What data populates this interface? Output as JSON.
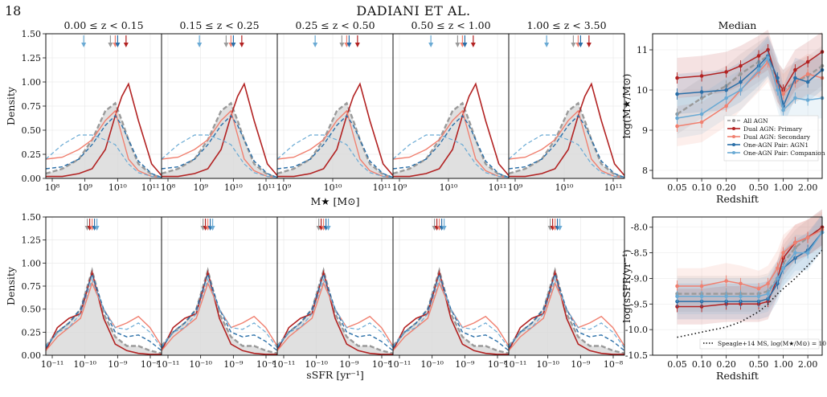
{
  "page": {
    "number": "18",
    "running_head": "DADIANI ET AL."
  },
  "colors": {
    "all": "#9a9a9a",
    "primary": "#b22222",
    "secondary": "#f08070",
    "agn1": "#2a6fa8",
    "companion": "#6aaad4",
    "fill": "#d8d8d8"
  },
  "panel_titles": [
    "0.00 ≤ z < 0.15",
    "0.15 ≤ z < 0.25",
    "0.25 ≤ z < 0.50",
    "0.50 ≤ z < 1.00",
    "1.00 ≤ z < 3.50"
  ],
  "median_title": "Median",
  "y_ticks_density": [
    "0.00",
    "0.25",
    "0.50",
    "0.75",
    "1.00",
    "1.25",
    "1.50"
  ],
  "density_label": "Density",
  "mass_xlabel": "M★ [M⊙]",
  "ssfr_xlabel": "sSFR [yr⁻¹]",
  "mass_xticks": [
    [
      "10⁸",
      "10⁹",
      "10¹⁰",
      "10¹¹"
    ],
    [
      "10⁸",
      "10⁹",
      "10¹⁰",
      "10¹¹"
    ],
    [
      "10⁹",
      "10¹⁰",
      "10¹¹"
    ],
    [
      "10⁹",
      "10¹⁰",
      "10¹¹"
    ],
    [
      "10⁹",
      "10¹⁰",
      "10¹¹"
    ]
  ],
  "ssfr_xticks": [
    [
      "10⁻¹¹",
      "10⁻¹⁰",
      "10⁻⁹",
      "10⁻⁸"
    ],
    [
      "10⁻¹¹",
      "10⁻¹⁰",
      "10⁻⁹",
      "10⁻⁸"
    ],
    [
      "10⁻¹¹",
      "10⁻¹⁰",
      "10⁻⁹",
      "10⁻⁸"
    ],
    [
      "10⁻¹¹",
      "10⁻¹⁰",
      "10⁻⁹",
      "10⁻⁸"
    ],
    [
      "10⁻¹¹",
      "10⁻¹⁰",
      "10⁻⁹",
      "10⁻⁸"
    ]
  ],
  "median_mass": {
    "ylabel": "log(M★/M⊙)",
    "yticks": [
      "8",
      "9",
      "10",
      "11"
    ],
    "xlabel": "Redshift",
    "xticks": [
      "0.05",
      "0.10",
      "0.20",
      "0.50",
      "1.00",
      "2.00"
    ],
    "legend": [
      "All AGN",
      "Dual AGN: Primary",
      "Dual AGN: Secondary",
      "One-AGN Pair: AGN1",
      "One-AGN Pair: Companion"
    ]
  },
  "median_ssfr": {
    "ylabel": "log(sSFR/yr⁻¹)",
    "yticks": [
      "-10.5",
      "-10.0",
      "-9.5",
      "-9.0",
      "-8.5",
      "-8.0"
    ],
    "xlabel": "Redshift",
    "xticks": [
      "0.05",
      "0.10",
      "0.20",
      "0.50",
      "1.00",
      "2.00"
    ],
    "legend": [
      "Speagle+14 MS, log(M★/M⊙) = 10"
    ]
  },
  "chart_data": [
    {
      "type": "line",
      "panel": "mass",
      "row": 0,
      "bin": 0,
      "x": [
        8.0,
        8.5,
        9.0,
        9.4,
        9.8,
        10.1,
        10.3,
        10.5,
        10.8,
        11.2,
        11.5
      ],
      "series": [
        {
          "name": "All AGN",
          "values": [
            0.05,
            0.1,
            0.2,
            0.4,
            0.7,
            0.78,
            0.6,
            0.4,
            0.15,
            0.04,
            0.01
          ]
        },
        {
          "name": "Dual AGN: Primary",
          "values": [
            0.02,
            0.02,
            0.05,
            0.1,
            0.3,
            0.65,
            0.85,
            0.98,
            0.6,
            0.15,
            0.03
          ]
        },
        {
          "name": "Dual AGN: Secondary",
          "values": [
            0.2,
            0.22,
            0.3,
            0.4,
            0.6,
            0.7,
            0.45,
            0.2,
            0.08,
            0.02,
            0.01
          ]
        },
        {
          "name": "One-AGN Pair: AGN1",
          "values": [
            0.1,
            0.12,
            0.2,
            0.35,
            0.55,
            0.65,
            0.55,
            0.4,
            0.18,
            0.05,
            0.01
          ]
        },
        {
          "name": "One-AGN Pair: Companion",
          "values": [
            0.2,
            0.35,
            0.45,
            0.45,
            0.4,
            0.35,
            0.25,
            0.15,
            0.06,
            0.02,
            0.01
          ]
        }
      ]
    },
    {
      "type": "line",
      "panel": "ssfr",
      "row": 1,
      "bin": 0,
      "x": [
        -11.0,
        -10.7,
        -10.4,
        -10.1,
        -9.8,
        -9.5,
        -9.2,
        -8.9,
        -8.6,
        -8.3,
        -8.0
      ],
      "series": [
        {
          "name": "All AGN",
          "values": [
            0.1,
            0.25,
            0.35,
            0.5,
            0.92,
            0.45,
            0.2,
            0.1,
            0.1,
            0.05,
            0.02
          ]
        },
        {
          "name": "Dual AGN: Primary",
          "values": [
            0.05,
            0.3,
            0.4,
            0.45,
            0.9,
            0.4,
            0.12,
            0.05,
            0.02,
            0.01,
            0.01
          ]
        },
        {
          "name": "Dual AGN: Secondary",
          "values": [
            0.05,
            0.2,
            0.3,
            0.4,
            0.78,
            0.5,
            0.3,
            0.35,
            0.42,
            0.3,
            0.1
          ]
        },
        {
          "name": "One-AGN Pair: AGN1",
          "values": [
            0.08,
            0.25,
            0.35,
            0.5,
            0.88,
            0.5,
            0.25,
            0.2,
            0.22,
            0.15,
            0.05
          ]
        },
        {
          "name": "One-AGN Pair: Companion",
          "values": [
            0.1,
            0.25,
            0.3,
            0.45,
            0.82,
            0.5,
            0.3,
            0.28,
            0.35,
            0.25,
            0.08
          ]
        }
      ]
    },
    {
      "type": "line",
      "panel": "median-mass",
      "xlabel": "Redshift",
      "ylabel": "log(M★/M⊙)",
      "x": [
        0.05,
        0.1,
        0.2,
        0.3,
        0.5,
        0.65,
        0.85,
        1.0,
        1.4,
        2.0,
        3.0
      ],
      "ylim": [
        7.8,
        11.4
      ],
      "series": [
        {
          "name": "All AGN",
          "values": [
            9.4,
            9.8,
            10.1,
            10.4,
            10.7,
            10.85,
            10.2,
            10.0,
            10.2,
            10.35,
            10.6
          ]
        },
        {
          "name": "Dual AGN: Primary",
          "values": [
            10.3,
            10.35,
            10.45,
            10.6,
            10.85,
            11.0,
            10.2,
            10.0,
            10.5,
            10.7,
            10.95
          ]
        },
        {
          "name": "Dual AGN: Secondary",
          "values": [
            9.1,
            9.2,
            9.6,
            10.0,
            10.45,
            10.7,
            10.1,
            9.9,
            10.2,
            10.4,
            10.3
          ]
        },
        {
          "name": "One-AGN Pair: AGN1",
          "values": [
            9.9,
            9.95,
            10.0,
            10.2,
            10.6,
            10.85,
            10.3,
            9.6,
            10.3,
            10.2,
            10.5
          ]
        },
        {
          "name": "One-AGN Pair: Companion",
          "values": [
            9.3,
            9.4,
            9.8,
            10.0,
            10.5,
            10.8,
            10.0,
            9.5,
            9.8,
            9.75,
            9.8
          ]
        }
      ]
    },
    {
      "type": "line",
      "panel": "median-ssfr",
      "xlabel": "Redshift",
      "ylabel": "log(sSFR/yr⁻¹)",
      "x": [
        0.05,
        0.1,
        0.2,
        0.3,
        0.5,
        0.65,
        0.85,
        1.0,
        1.4,
        2.0,
        3.0
      ],
      "ylim": [
        -10.5,
        -7.8
      ],
      "series": [
        {
          "name": "All AGN",
          "values": [
            -9.3,
            -9.3,
            -9.3,
            -9.3,
            -9.3,
            -9.25,
            -9.0,
            -8.7,
            -8.4,
            -8.2,
            -8.0
          ]
        },
        {
          "name": "Dual AGN: Primary",
          "values": [
            -9.55,
            -9.55,
            -9.5,
            -9.5,
            -9.5,
            -9.45,
            -9.0,
            -8.6,
            -8.3,
            -8.2,
            -8.0
          ]
        },
        {
          "name": "Dual AGN: Secondary",
          "values": [
            -9.15,
            -9.15,
            -9.05,
            -9.1,
            -9.2,
            -9.1,
            -8.8,
            -8.5,
            -8.3,
            -8.2,
            -8.05
          ]
        },
        {
          "name": "One-AGN Pair: AGN1",
          "values": [
            -9.45,
            -9.45,
            -9.45,
            -9.45,
            -9.45,
            -9.4,
            -9.1,
            -8.8,
            -8.6,
            -8.45,
            -8.1
          ]
        },
        {
          "name": "One-AGN Pair: Companion",
          "values": [
            -9.35,
            -9.35,
            -9.35,
            -9.35,
            -9.35,
            -9.3,
            -9.0,
            -8.8,
            -8.5,
            -8.5,
            -8.1
          ]
        },
        {
          "name": "Speagle+14 MS, log(M★/M⊙) = 10",
          "values": [
            -10.15,
            -10.05,
            -9.95,
            -9.85,
            -9.65,
            -9.5,
            -9.3,
            -9.2,
            -9.0,
            -8.75,
            -8.45
          ]
        }
      ]
    }
  ]
}
